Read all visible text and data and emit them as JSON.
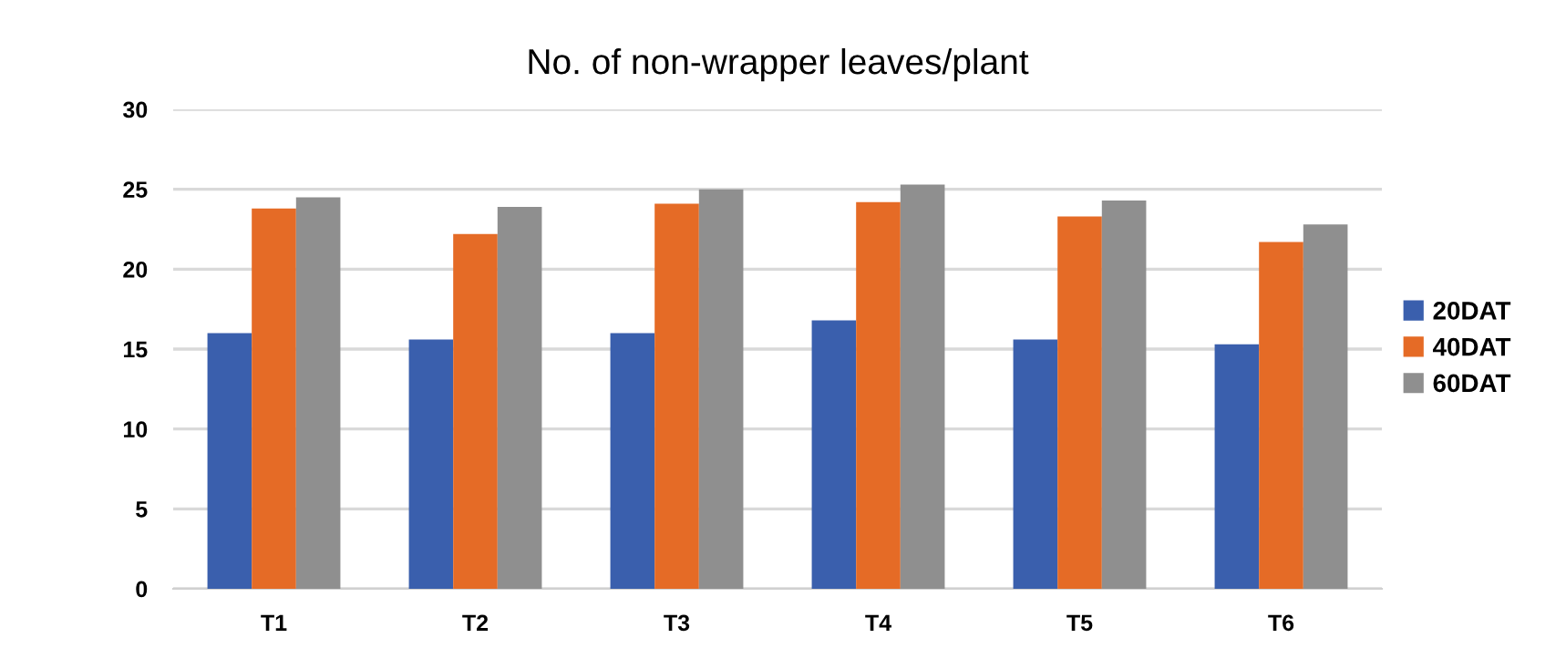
{
  "chart_data": {
    "type": "bar",
    "title": "No. of non-wrapper leaves/plant",
    "categories": [
      "T1",
      "T2",
      "T3",
      "T4",
      "T5",
      "T6"
    ],
    "series": [
      {
        "name": "20DAT",
        "color": "#3a5fad",
        "values": [
          16.0,
          15.6,
          16.0,
          16.8,
          15.6,
          15.3
        ]
      },
      {
        "name": "40DAT",
        "color": "#e56b26",
        "values": [
          23.8,
          22.2,
          24.1,
          24.2,
          23.3,
          21.7
        ]
      },
      {
        "name": "60DAT",
        "color": "#8f8f8f",
        "values": [
          24.5,
          23.9,
          25.0,
          25.3,
          24.3,
          22.8
        ]
      }
    ],
    "ylim": [
      0,
      30
    ],
    "yticks": [
      0,
      5,
      10,
      15,
      20,
      25,
      30
    ],
    "grid": "y",
    "legend": "right"
  }
}
